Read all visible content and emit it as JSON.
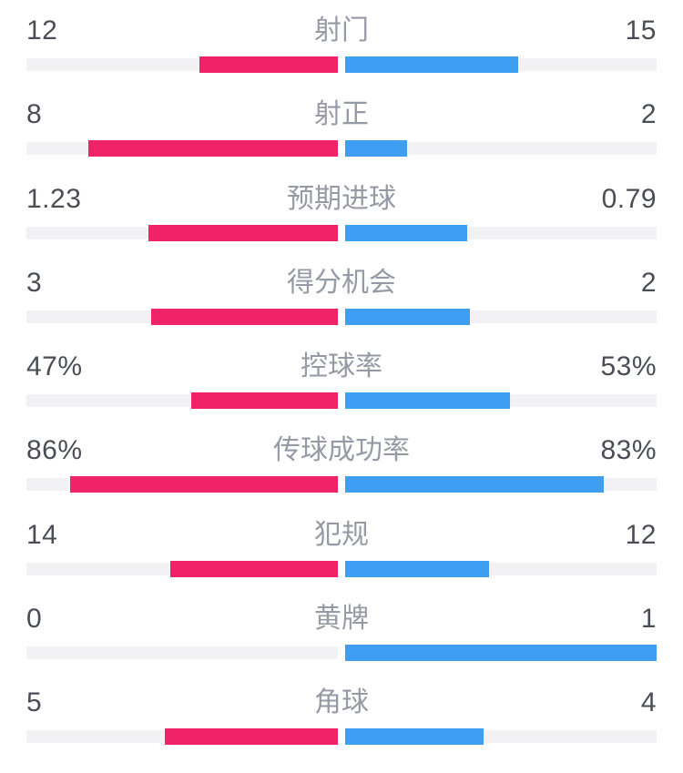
{
  "colors": {
    "home": "#F02369",
    "away": "#3E9EF2",
    "track": "#F2F2F4",
    "value_text": "#4A4E54",
    "label_text": "#969AA4",
    "background": "#FFFFFF"
  },
  "chart_data": {
    "type": "bar",
    "orientation": "horizontal-diverging",
    "legend_position": "none",
    "grid": false,
    "bar_scaling": "count rows: value/(home+away) of half-width; percent rows: value% of half-width",
    "rows": [
      {
        "label": "射门",
        "home": 12,
        "away": 15,
        "home_display": "12",
        "away_display": "15",
        "scale": "share"
      },
      {
        "label": "射正",
        "home": 8,
        "away": 2,
        "home_display": "8",
        "away_display": "2",
        "scale": "share"
      },
      {
        "label": "预期进球",
        "home": 1.23,
        "away": 0.79,
        "home_display": "1.23",
        "away_display": "0.79",
        "scale": "share"
      },
      {
        "label": "得分机会",
        "home": 3,
        "away": 2,
        "home_display": "3",
        "away_display": "2",
        "scale": "share"
      },
      {
        "label": "控球率",
        "home": 47,
        "away": 53,
        "home_display": "47%",
        "away_display": "53%",
        "scale": "percent"
      },
      {
        "label": "传球成功率",
        "home": 86,
        "away": 83,
        "home_display": "86%",
        "away_display": "83%",
        "scale": "percent"
      },
      {
        "label": "犯规",
        "home": 14,
        "away": 12,
        "home_display": "14",
        "away_display": "12",
        "scale": "share"
      },
      {
        "label": "黄牌",
        "home": 0,
        "away": 1,
        "home_display": "0",
        "away_display": "1",
        "scale": "share"
      },
      {
        "label": "角球",
        "home": 5,
        "away": 4,
        "home_display": "5",
        "away_display": "4",
        "scale": "share"
      }
    ]
  }
}
